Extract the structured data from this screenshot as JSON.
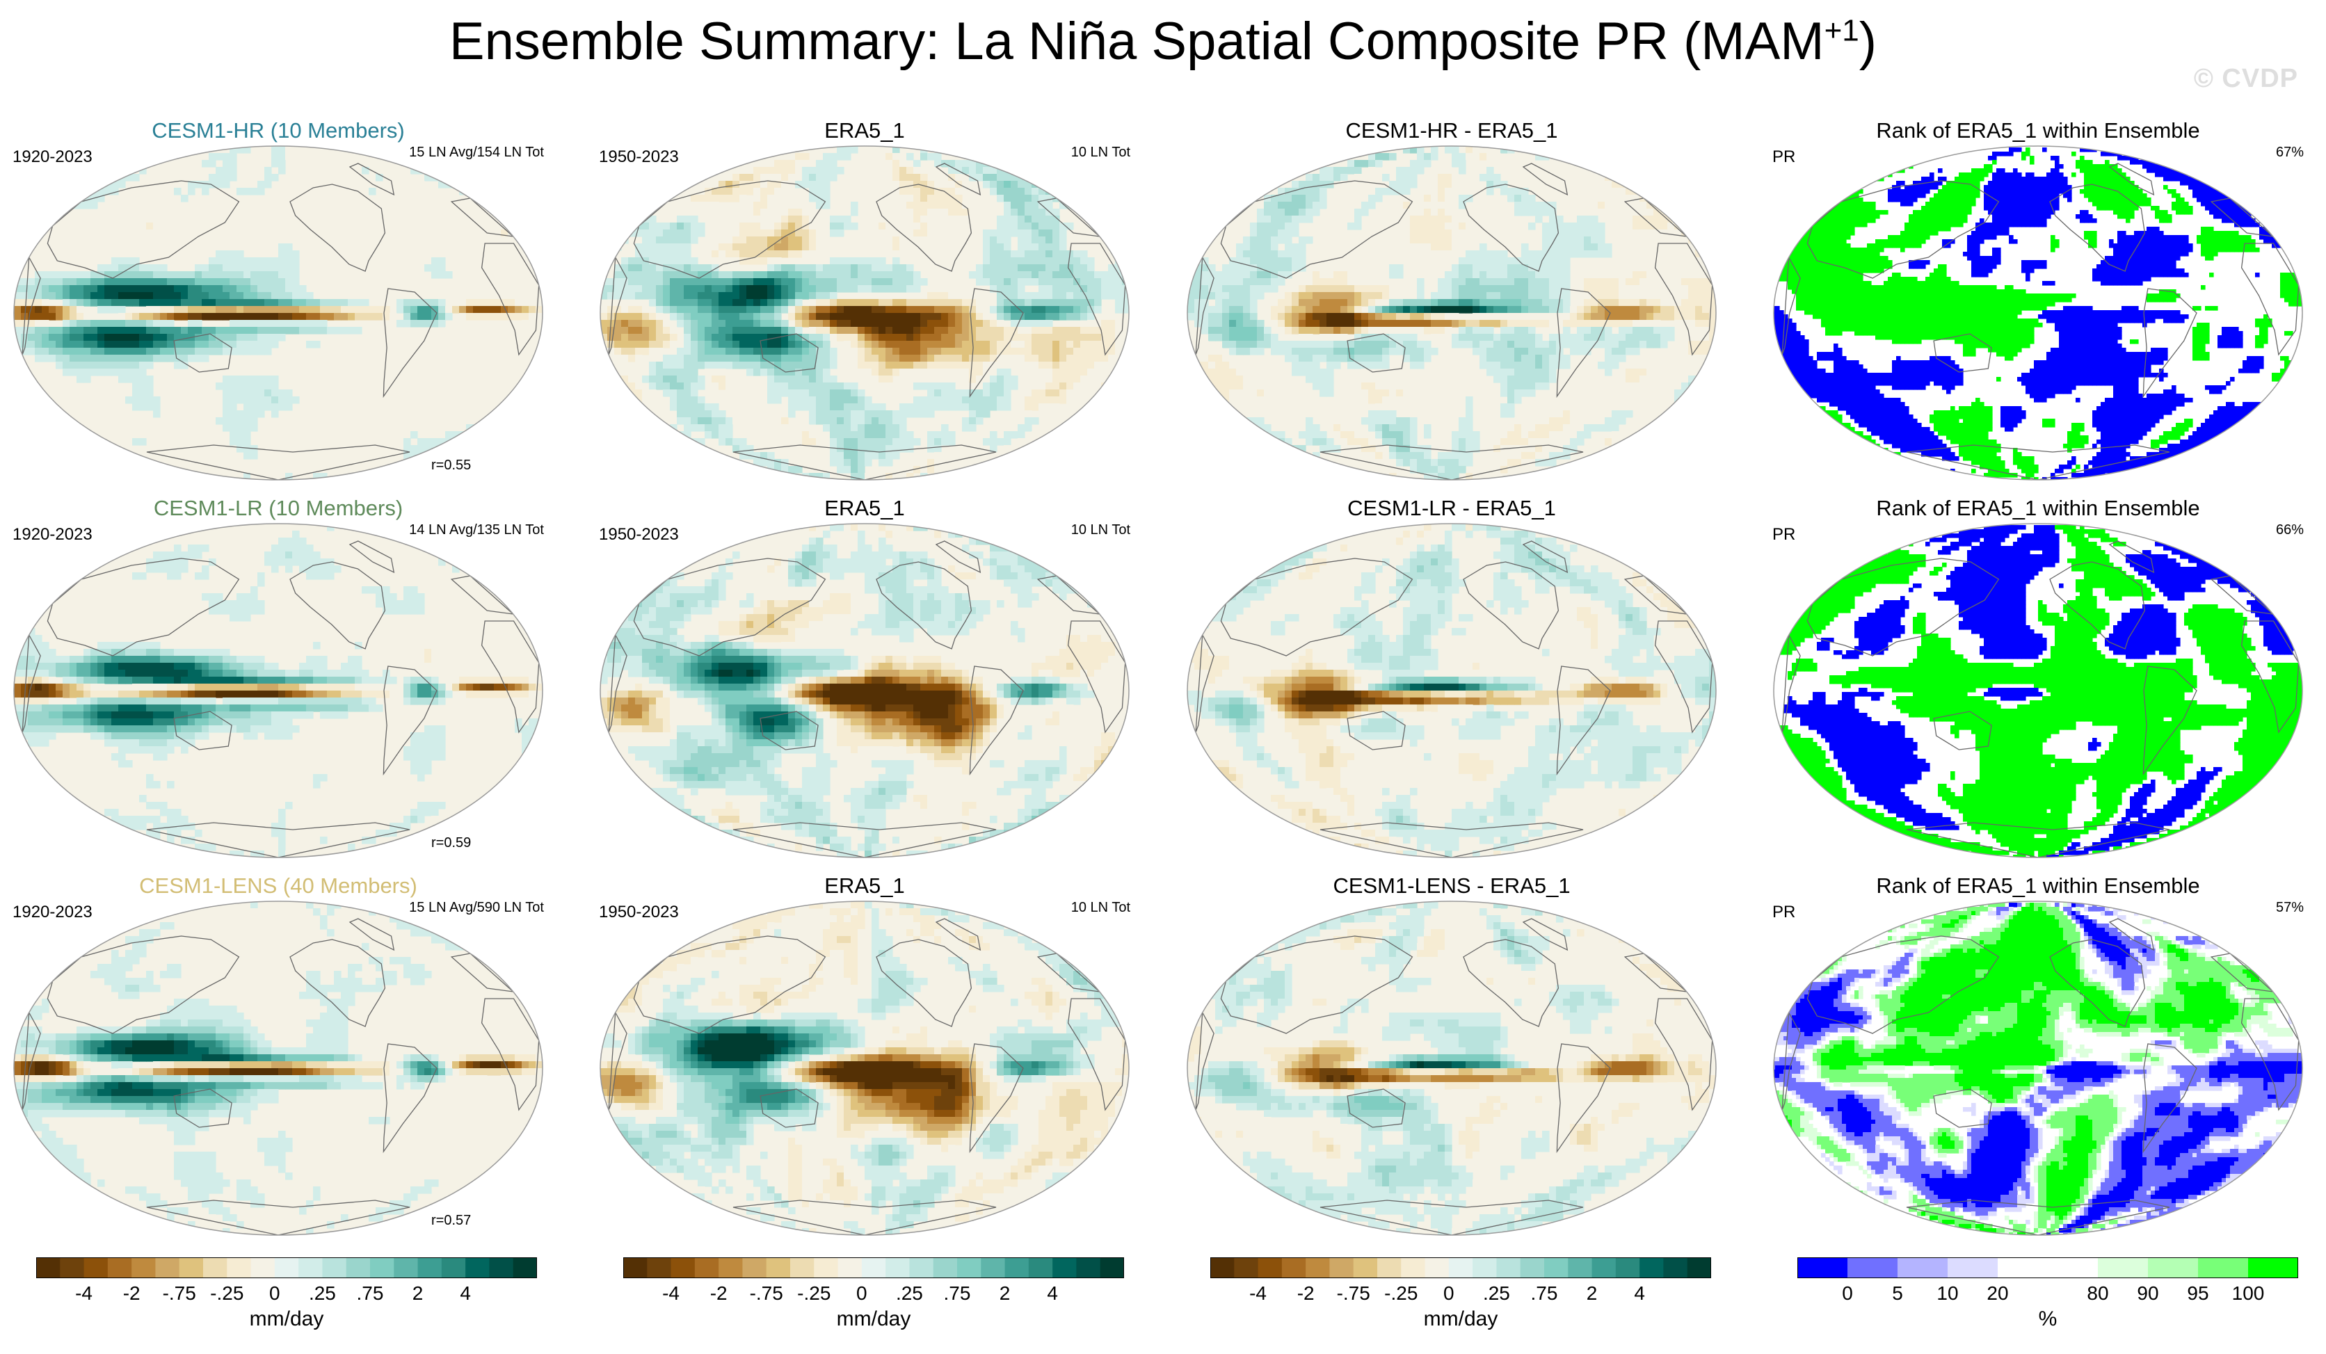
{
  "figure": {
    "title": "Ensemble Summary: La Niña Spatial Composite PR (MAM",
    "title_sup": "+1",
    "title_end": ")",
    "watermark": "© CVDP"
  },
  "chart_data": {
    "type": "heatmap",
    "variable": "PR",
    "season": "MAM+1",
    "rows": [
      {
        "model": {
          "title": "CESM1-HR (10 Members)",
          "title_color": "#2a8096",
          "years": "1920-2023",
          "counts": "15 LN Avg/154 LN Tot",
          "pattern_corr": "r=0.55"
        },
        "obs": {
          "title": "ERA5_1",
          "years": "1950-2023",
          "counts": "10 LN Tot"
        },
        "diff": {
          "title": "CESM1-HR - ERA5_1"
        },
        "rank": {
          "title": "Rank of ERA5_1 within Ensemble",
          "var": "PR",
          "percent": "67%"
        }
      },
      {
        "model": {
          "title": "CESM1-LR (10 Members)",
          "title_color": "#5e8a5a",
          "years": "1920-2023",
          "counts": "14 LN Avg/135 LN Tot",
          "pattern_corr": "r=0.59"
        },
        "obs": {
          "title": "ERA5_1",
          "years": "1950-2023",
          "counts": "10 LN Tot"
        },
        "diff": {
          "title": "CESM1-LR - ERA5_1"
        },
        "rank": {
          "title": "Rank of ERA5_1 within Ensemble",
          "var": "PR",
          "percent": "66%"
        }
      },
      {
        "model": {
          "title": "CESM1-LENS (40 Members)",
          "title_color": "#d2bd74",
          "years": "1920-2023",
          "counts": "15 LN Avg/590 LN Tot",
          "pattern_corr": "r=0.57"
        },
        "obs": {
          "title": "ERA5_1",
          "years": "1950-2023",
          "counts": "10 LN Tot"
        },
        "diff": {
          "title": "CESM1-LENS - ERA5_1"
        },
        "rank": {
          "title": "Rank of ERA5_1 within Ensemble",
          "var": "PR",
          "percent": "57%"
        }
      }
    ],
    "colorbar_pr": {
      "units": "mm/day",
      "colors": [
        "#543005",
        "#6e420c",
        "#8c510a",
        "#a96d23",
        "#bf8a3e",
        "#cfa866",
        "#dfc27d",
        "#eddcb2",
        "#f6ecd3",
        "#f5f2e6",
        "#e6f3f1",
        "#d2ede9",
        "#b9e3dd",
        "#9ad5cc",
        "#80cdc1",
        "#5fb5aa",
        "#3d9e93",
        "#2a8a7e",
        "#01665e",
        "#015048",
        "#003c30"
      ],
      "tick_labels": [
        "-4",
        "-2",
        "-.75",
        "-.25",
        "0",
        ".25",
        ".75",
        "2",
        "4"
      ],
      "tick_positions": [
        2,
        4,
        6,
        8,
        10,
        12,
        14,
        16,
        18
      ]
    },
    "colorbar_rank": {
      "units": "%",
      "colors": [
        "#0000ff",
        "#7070ff",
        "#b4b4ff",
        "#dcdcff",
        "#ffffff",
        "#ffffff",
        "#dcffdc",
        "#b4ffb4",
        "#78ff78",
        "#00ff00"
      ],
      "tick_labels": [
        "0",
        "5",
        "10",
        "20",
        "80",
        "90",
        "95",
        "100"
      ],
      "tick_positions": [
        1,
        2,
        3,
        4,
        6,
        7,
        8,
        9
      ]
    }
  }
}
